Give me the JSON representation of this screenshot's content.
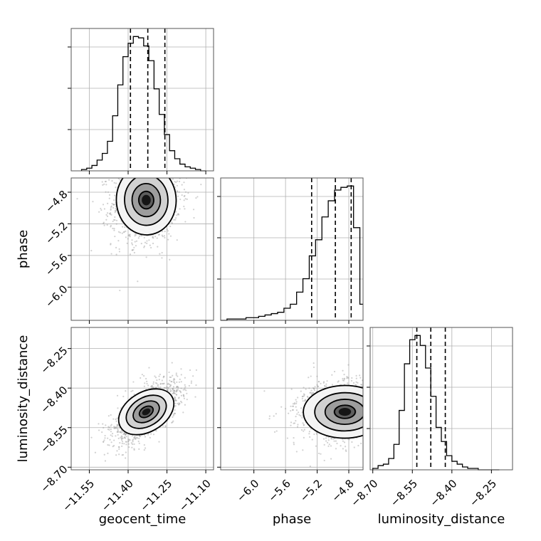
{
  "chart_data": {
    "type": "corner",
    "parameters": [
      "geocent_time",
      "phase",
      "luminosity_distance"
    ],
    "grid": true,
    "axes": {
      "geocent_time": {
        "label": "geocent_time",
        "range": [
          -11.62,
          -11.07
        ],
        "ticks": [
          -11.55,
          -11.4,
          -11.25,
          -11.1
        ],
        "tick_labels": [
          "−11.55",
          "−11.40",
          "−11.25",
          "−11.10"
        ]
      },
      "phase": {
        "label": "phase",
        "range": [
          -6.42,
          -4.62
        ],
        "ticks": [
          -6.0,
          -5.6,
          -5.2,
          -4.8
        ],
        "tick_labels": [
          "−6.0",
          "−5.6",
          "−5.2",
          "−4.8"
        ]
      },
      "luminosity_distance": {
        "label": "luminosity_distance",
        "range": [
          -8.71,
          -8.17
        ],
        "ticks": [
          -8.7,
          -8.55,
          -8.4,
          -8.25
        ],
        "tick_labels": [
          "−8.70",
          "−8.55",
          "−8.40",
          "−8.25"
        ]
      }
    },
    "marginals": [
      {
        "parameter": "geocent_time",
        "quantiles": [
          -11.391,
          -11.324,
          -11.258
        ],
        "bins": [
          -11.58,
          -11.56,
          -11.54,
          -11.52,
          -11.5,
          -11.48,
          -11.46,
          -11.44,
          -11.42,
          -11.4,
          -11.38,
          -11.36,
          -11.34,
          -11.32,
          -11.3,
          -11.28,
          -11.26,
          -11.24,
          -11.22,
          -11.2,
          -11.18,
          -11.16,
          -11.14,
          -11.12,
          -11.1
        ],
        "counts": [
          0.01,
          0.02,
          0.04,
          0.08,
          0.13,
          0.22,
          0.41,
          0.64,
          0.85,
          0.95,
          1.0,
          0.99,
          0.93,
          0.82,
          0.61,
          0.42,
          0.27,
          0.15,
          0.09,
          0.05,
          0.03,
          0.02,
          0.01,
          0.0
        ]
      },
      {
        "parameter": "phase",
        "quantiles": [
          -5.27,
          -4.97,
          -4.77
        ],
        "bins": [
          -6.42,
          -6.34,
          -6.26,
          -6.18,
          -6.1,
          -6.02,
          -5.94,
          -5.86,
          -5.78,
          -5.7,
          -5.62,
          -5.54,
          -5.46,
          -5.38,
          -5.3,
          -5.22,
          -5.14,
          -5.06,
          -4.98,
          -4.9,
          -4.82,
          -4.74,
          -4.66,
          -4.62
        ],
        "counts": [
          0.0,
          0.01,
          0.01,
          0.01,
          0.02,
          0.02,
          0.03,
          0.04,
          0.05,
          0.06,
          0.09,
          0.12,
          0.21,
          0.31,
          0.48,
          0.6,
          0.77,
          0.89,
          0.97,
          0.99,
          1.0,
          0.69,
          0.12
        ]
      },
      {
        "parameter": "luminosity_distance",
        "quantiles": [
          -8.533,
          -8.48,
          -8.425
        ],
        "bins": [
          -8.7,
          -8.68,
          -8.66,
          -8.64,
          -8.62,
          -8.6,
          -8.58,
          -8.56,
          -8.54,
          -8.52,
          -8.5,
          -8.48,
          -8.46,
          -8.44,
          -8.42,
          -8.4,
          -8.38,
          -8.36,
          -8.34,
          -8.32,
          -8.3,
          -8.28,
          -8.26,
          -8.24,
          -8.22
        ],
        "counts": [
          0.01,
          0.03,
          0.04,
          0.08,
          0.18,
          0.42,
          0.75,
          0.92,
          0.95,
          0.88,
          0.72,
          0.52,
          0.3,
          0.2,
          0.1,
          0.06,
          0.04,
          0.02,
          0.01,
          0.01,
          0.0,
          0.0,
          0.0,
          0.0
        ]
      }
    ],
    "joint": [
      {
        "x": "geocent_time",
        "y": "phase",
        "center": [
          -11.33,
          -4.9
        ],
        "spread": [
          0.055,
          0.22
        ],
        "correlation": 0.1
      },
      {
        "x": "geocent_time",
        "y": "luminosity_distance",
        "center": [
          -11.33,
          -8.49
        ],
        "spread": [
          0.055,
          0.05
        ],
        "correlation": 0.65
      },
      {
        "x": "phase",
        "y": "luminosity_distance",
        "center": [
          -4.85,
          -8.49
        ],
        "spread": [
          0.25,
          0.05
        ],
        "correlation": 0.05
      }
    ]
  }
}
